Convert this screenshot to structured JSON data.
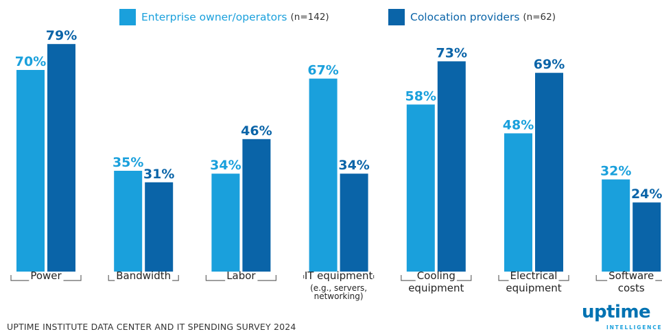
{
  "legend": {
    "enterprise_label": "Enterprise owner/operators",
    "enterprise_n": "(n=142)",
    "colocation_label": "Colocation providers",
    "colocation_n": "(n=62)"
  },
  "colors": {
    "enterprise": "#1aa0dc",
    "colocation": "#0a64a8"
  },
  "chart_data": {
    "type": "bar",
    "categories": [
      [
        "Power"
      ],
      [
        "Bandwidth"
      ],
      [
        "Labor"
      ],
      [
        "IT equipment",
        "(e.g., servers,",
        "networking)"
      ],
      [
        "Cooling",
        "equipment"
      ],
      [
        "Electrical",
        "equipment"
      ],
      [
        "Software",
        "costs"
      ]
    ],
    "series": [
      {
        "name": "Enterprise owner/operators (n=142)",
        "values": [
          70,
          35,
          34,
          67,
          58,
          48,
          32
        ],
        "labels": [
          "70%",
          "35%",
          "34%",
          "67%",
          "58%",
          "48%",
          "32%"
        ]
      },
      {
        "name": "Colocation providers (n=62)",
        "values": [
          79,
          31,
          46,
          34,
          73,
          69,
          24
        ],
        "labels": [
          "79%",
          "31%",
          "46%",
          "34%",
          "73%",
          "69%",
          "24%"
        ]
      }
    ],
    "unit": "%",
    "ylim": [
      0,
      100
    ],
    "grid": false,
    "legend_position": "top"
  },
  "footer": {
    "source": "UPTIME INSTITUTE DATA CENTER AND IT SPENDING SURVEY 2024",
    "logo_word": "uptime",
    "logo_sub": "INTELLIGENCE"
  }
}
